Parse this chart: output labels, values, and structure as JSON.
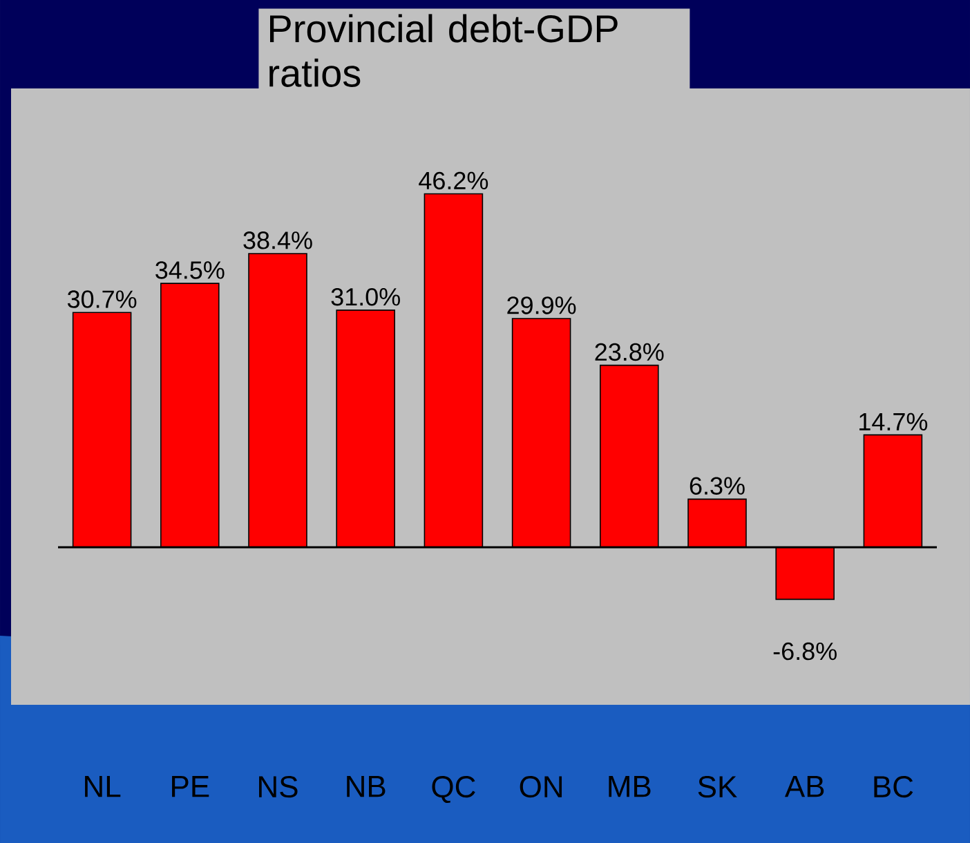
{
  "chart_data": {
    "type": "bar",
    "title": "Provincial debt-GDP ratios",
    "categories": [
      "NL",
      "PE",
      "NS",
      "NB",
      "QC",
      "ON",
      "MB",
      "SK",
      "AB",
      "BC"
    ],
    "values": [
      30.7,
      34.5,
      38.4,
      31.0,
      46.2,
      29.9,
      23.8,
      6.3,
      -6.8,
      14.7
    ],
    "value_labels": [
      "30.7%",
      "34.5%",
      "38.4%",
      "31.0%",
      "46.2%",
      "29.9%",
      "23.8%",
      "6.3%",
      "-6.8%",
      "14.7%"
    ],
    "color": "#ff0000"
  }
}
